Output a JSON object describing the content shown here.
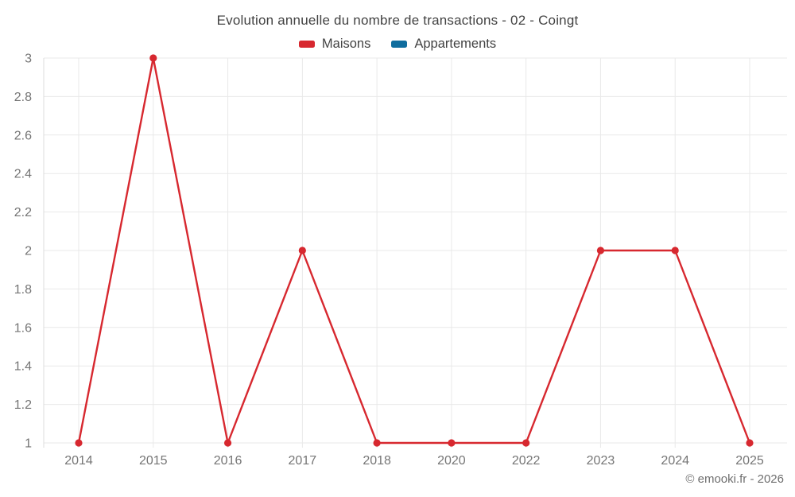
{
  "header": {
    "title": "Evolution annuelle du nombre de transactions - 02 - Coingt",
    "legend": [
      {
        "label": "Maisons",
        "color": "#d7282f"
      },
      {
        "label": "Appartements",
        "color": "#0f6d9e"
      }
    ]
  },
  "footer": {
    "credit": "© emooki.fr - 2026"
  },
  "chart_data": {
    "type": "line",
    "title": "Evolution annuelle du nombre de transactions - 02 - Coingt",
    "categories": [
      "2014",
      "2015",
      "2016",
      "2017",
      "2018",
      "2020",
      "2022",
      "2023",
      "2024",
      "2025"
    ],
    "series": [
      {
        "name": "Maisons",
        "color": "#d7282f",
        "values": [
          1,
          3,
          1,
          2,
          1,
          1,
          1,
          2,
          2,
          1
        ]
      },
      {
        "name": "Appartements",
        "color": "#0f6d9e",
        "values": []
      }
    ],
    "xlabel": "",
    "ylabel": "",
    "ylim": [
      1,
      3
    ],
    "y_ticks": [
      1,
      1.2,
      1.4,
      1.6,
      1.8,
      2,
      2.2,
      2.4,
      2.6,
      2.8,
      3
    ],
    "grid": true,
    "legend_position": "top"
  }
}
